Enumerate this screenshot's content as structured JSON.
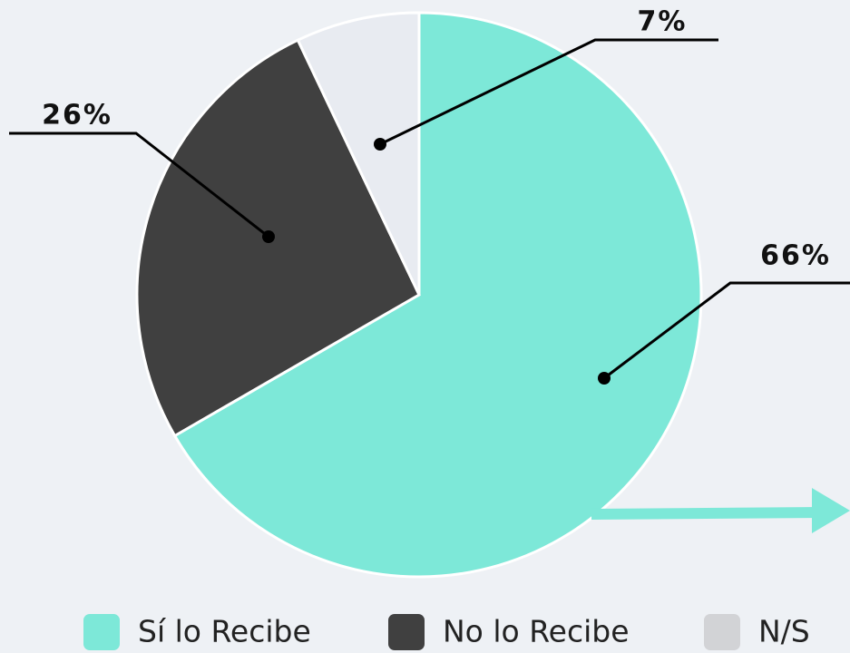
{
  "chart_data": {
    "type": "pie",
    "categories": [
      "Sí lo Recibe",
      "No lo Recibe",
      "N/S"
    ],
    "values": [
      66,
      26,
      7
    ],
    "value_labels": [
      "66%",
      "26%",
      "7%"
    ],
    "colors": [
      "#7de8d8",
      "#404040",
      "#e8ebf1"
    ],
    "legend": "bottom"
  }
}
